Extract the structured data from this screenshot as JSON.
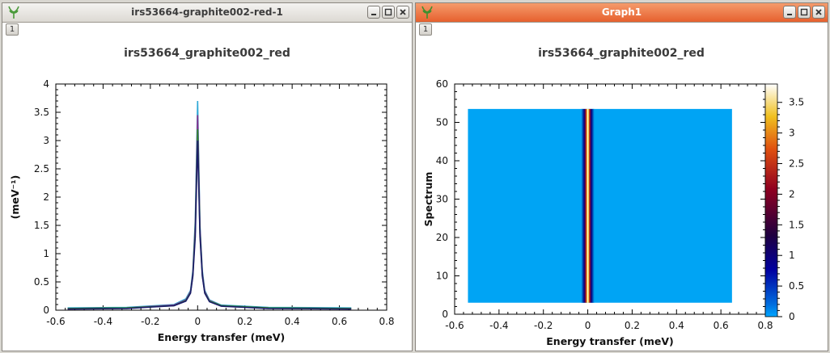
{
  "windows": [
    {
      "title": "irs53664-graphite002-red-1",
      "layer_tab": "1"
    },
    {
      "title": "Graph1",
      "layer_tab": "1"
    }
  ],
  "chart_data": [
    {
      "type": "line",
      "title": "irs53664_graphite002_red",
      "xlabel": "Energy transfer (meV)",
      "ylabel": "(meV⁻¹)",
      "xlim": [
        -0.6,
        0.8
      ],
      "ylim": [
        0,
        4
      ],
      "xticks": [
        -0.6,
        -0.4,
        -0.2,
        0,
        0.2,
        0.4,
        0.6,
        0.8
      ],
      "yticks": [
        0,
        0.5,
        1,
        1.5,
        2,
        2.5,
        3,
        3.5,
        4
      ],
      "grid": false,
      "series": [
        {
          "color": "#2ea8d6",
          "peak": 3.7,
          "x": [
            -0.55,
            -0.3,
            -0.1,
            -0.05,
            -0.03,
            -0.02,
            -0.01,
            0,
            0.01,
            0.02,
            0.03,
            0.05,
            0.1,
            0.3,
            0.65
          ],
          "y": [
            0.04,
            0.05,
            0.1,
            0.2,
            0.35,
            0.7,
            1.6,
            3.7,
            1.5,
            0.7,
            0.35,
            0.18,
            0.09,
            0.05,
            0.04
          ]
        },
        {
          "color": "#8a2f8a",
          "peak": 3.45,
          "x": [
            -0.55,
            -0.3,
            -0.1,
            -0.05,
            -0.03,
            -0.02,
            -0.01,
            0,
            0.01,
            0.02,
            0.03,
            0.05,
            0.1,
            0.3,
            0.65
          ],
          "y": [
            0.03,
            0.04,
            0.09,
            0.18,
            0.33,
            0.66,
            1.5,
            3.45,
            1.45,
            0.66,
            0.33,
            0.17,
            0.08,
            0.04,
            0.03
          ]
        },
        {
          "color": "#2a8a2a",
          "peak": 3.2,
          "x": [
            -0.55,
            -0.3,
            -0.1,
            -0.05,
            -0.03,
            -0.02,
            -0.01,
            0,
            0.01,
            0.02,
            0.03,
            0.05,
            0.1,
            0.3,
            0.65
          ],
          "y": [
            0.03,
            0.04,
            0.08,
            0.17,
            0.31,
            0.62,
            1.4,
            3.2,
            1.35,
            0.62,
            0.31,
            0.16,
            0.08,
            0.04,
            0.03
          ]
        },
        {
          "color": "#1a1a6a",
          "peak": 3.0,
          "x": [
            -0.55,
            -0.3,
            -0.1,
            -0.05,
            -0.03,
            -0.02,
            -0.01,
            0,
            0.01,
            0.02,
            0.03,
            0.05,
            0.1,
            0.3,
            0.65
          ],
          "y": [
            0.02,
            0.03,
            0.08,
            0.16,
            0.3,
            0.6,
            1.3,
            3.0,
            1.3,
            0.6,
            0.3,
            0.15,
            0.07,
            0.03,
            0.02
          ]
        }
      ]
    },
    {
      "type": "heatmap",
      "title": "irs53664_graphite002_red",
      "xlabel": "Energy transfer (meV)",
      "ylabel": "Spectrum",
      "xlim": [
        -0.6,
        0.8
      ],
      "ylim": [
        0,
        60
      ],
      "xticks": [
        -0.6,
        -0.4,
        -0.2,
        0,
        0.2,
        0.4,
        0.6,
        0.8
      ],
      "yticks": [
        0,
        10,
        20,
        30,
        40,
        50,
        60
      ],
      "data_xrange": [
        -0.54,
        0.65
      ],
      "data_yrange": [
        3,
        53.5
      ],
      "ridge_center": 0,
      "background_value": 0.02,
      "peak_value": 3.7,
      "colorbar": {
        "ticks": [
          0,
          0.5,
          1,
          1.5,
          2,
          2.5,
          3,
          3.5
        ],
        "range": [
          0,
          3.8
        ]
      },
      "grid": false
    }
  ]
}
